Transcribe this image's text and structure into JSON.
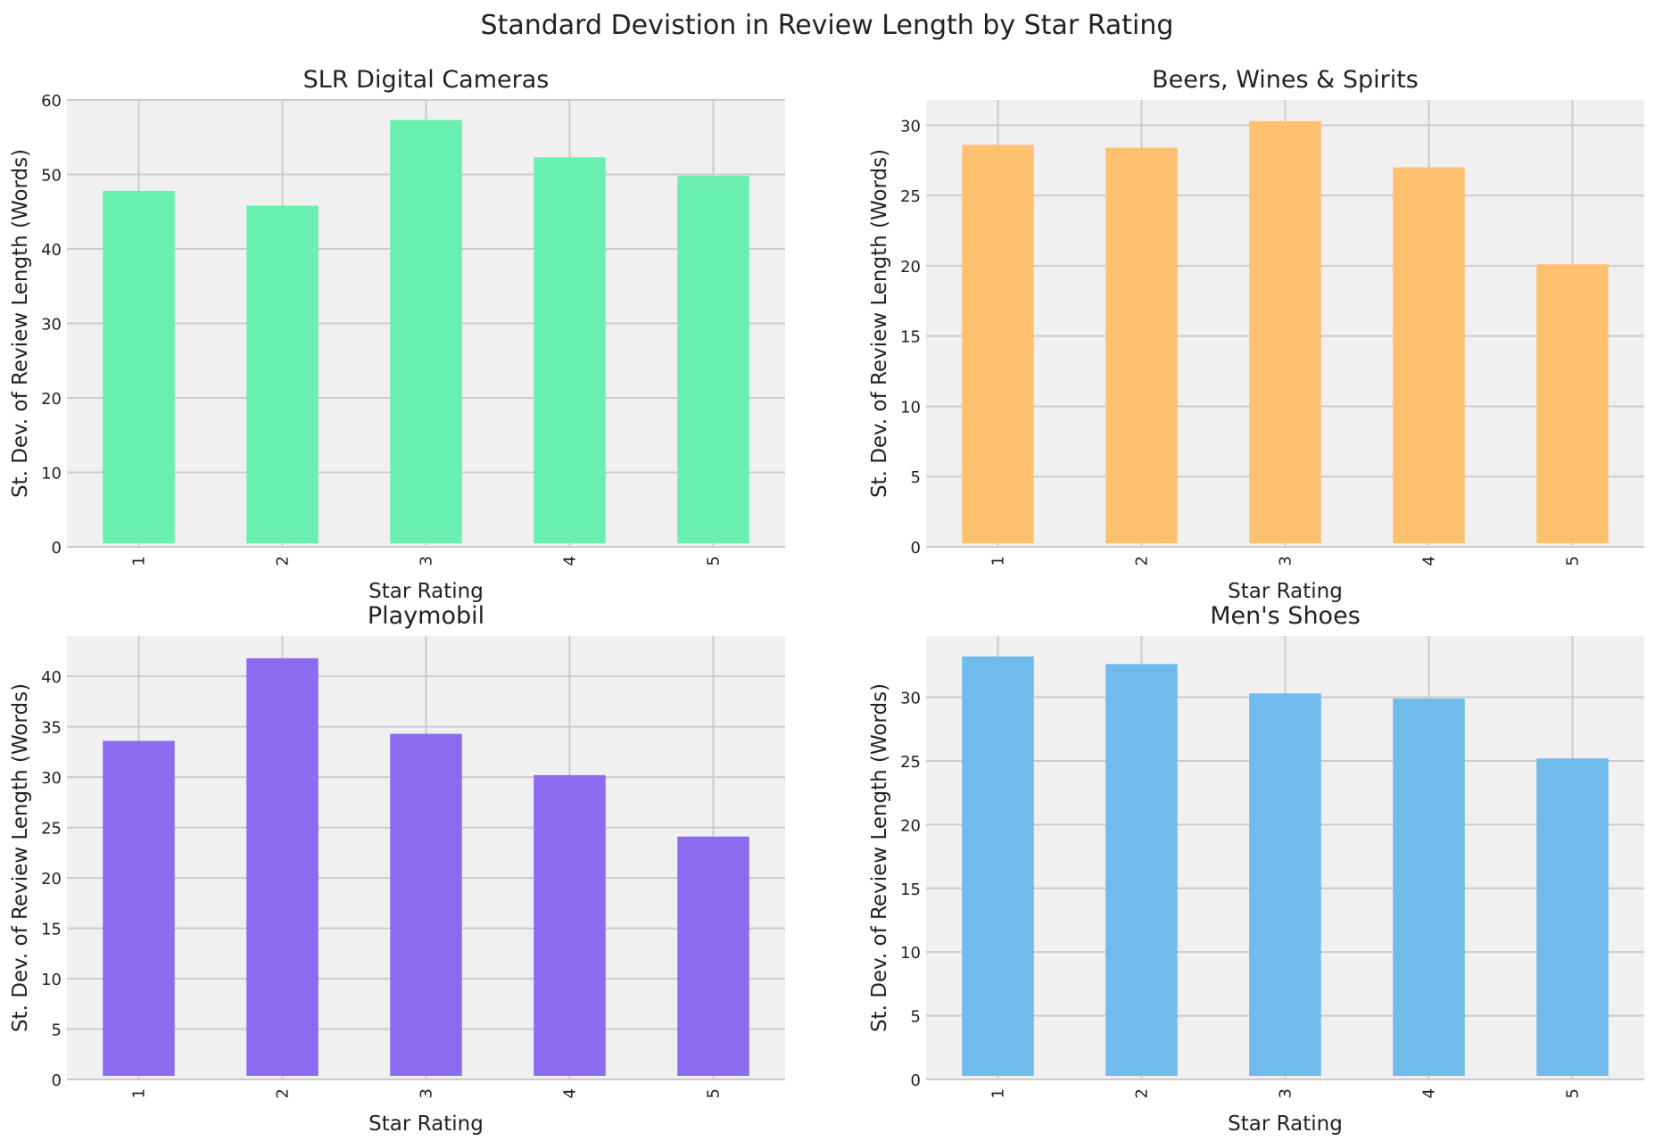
{
  "suptitle": "Standard Devistion in Review Length by Star Rating",
  "chart_data": [
    {
      "type": "bar",
      "title": "SLR Digital Cameras",
      "xlabel": "Star Rating",
      "ylabel": "St. Dev. of Review Length (Words)",
      "categories": [
        "1",
        "2",
        "3",
        "4",
        "5"
      ],
      "values": [
        47.8,
        45.8,
        57.3,
        52.3,
        49.8
      ],
      "ylim": [
        0,
        60
      ],
      "yticks": [
        0,
        10,
        20,
        30,
        40,
        50,
        60
      ],
      "color": "#69f0ae",
      "grid": true
    },
    {
      "type": "bar",
      "title": "Beers, Wines & Spirits",
      "xlabel": "Star Rating",
      "ylabel": "St. Dev. of Review Length (Words)",
      "categories": [
        "1",
        "2",
        "3",
        "4",
        "5"
      ],
      "values": [
        28.6,
        28.4,
        30.3,
        27.0,
        20.1
      ],
      "ylim": [
        0,
        31.8
      ],
      "yticks": [
        0,
        5,
        10,
        15,
        20,
        25,
        30
      ],
      "color": "#ffc170",
      "grid": true
    },
    {
      "type": "bar",
      "title": "Playmobil",
      "xlabel": "Star Rating",
      "ylabel": "St. Dev. of Review Length (Words)",
      "categories": [
        "1",
        "2",
        "3",
        "4",
        "5"
      ],
      "values": [
        33.6,
        41.8,
        34.3,
        30.2,
        24.1
      ],
      "ylim": [
        0,
        44
      ],
      "yticks": [
        0,
        5,
        10,
        15,
        20,
        25,
        30,
        35,
        40
      ],
      "color": "#8a6cf0",
      "grid": true
    },
    {
      "type": "bar",
      "title": "Men's Shoes",
      "xlabel": "Star Rating",
      "ylabel": "St. Dev. of Review Length (Words)",
      "categories": [
        "1",
        "2",
        "3",
        "4",
        "5"
      ],
      "values": [
        33.2,
        32.6,
        30.3,
        29.9,
        25.2
      ],
      "ylim": [
        0,
        34.8
      ],
      "yticks": [
        0,
        5,
        10,
        15,
        20,
        25,
        30
      ],
      "color": "#6ebbec",
      "grid": true
    }
  ]
}
